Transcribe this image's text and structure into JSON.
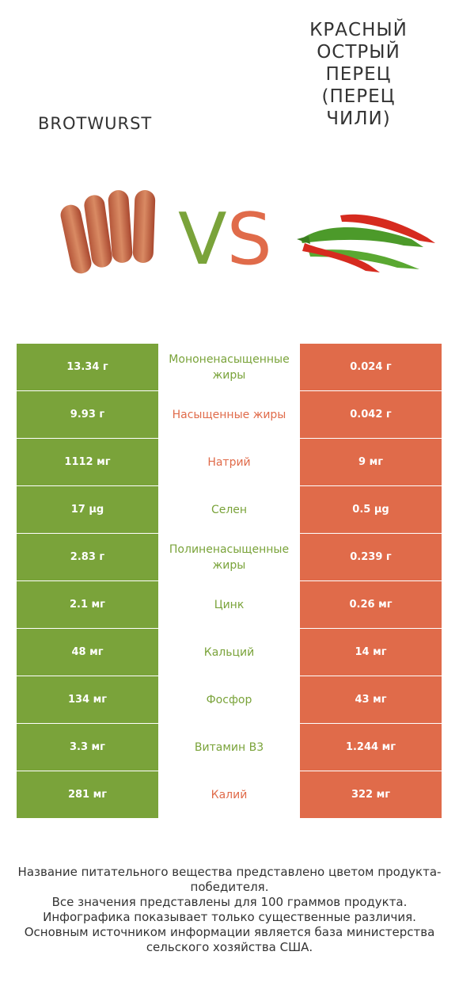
{
  "header": {
    "left_title": "BROTWURST",
    "right_title": "КРАСНЫЙ ОСТРЫЙ ПЕРЕЦ (ПЕРЕЦ ЧИЛИ)",
    "vs_v": "V",
    "vs_s": "S"
  },
  "colors": {
    "left": "#7aa33a",
    "right": "#e06b4a"
  },
  "rows": [
    {
      "left": "13.34 г",
      "label": "Мононенасыщенные жиры",
      "right": "0.024 г",
      "winner": "left"
    },
    {
      "left": "9.93 г",
      "label": "Насыщенные жиры",
      "right": "0.042 г",
      "winner": "right"
    },
    {
      "left": "1112 мг",
      "label": "Натрий",
      "right": "9 мг",
      "winner": "right"
    },
    {
      "left": "17 µg",
      "label": "Селен",
      "right": "0.5 µg",
      "winner": "left"
    },
    {
      "left": "2.83 г",
      "label": "Полиненасыщенные жиры",
      "right": "0.239 г",
      "winner": "left"
    },
    {
      "left": "2.1 мг",
      "label": "Цинк",
      "right": "0.26 мг",
      "winner": "left"
    },
    {
      "left": "48 мг",
      "label": "Кальций",
      "right": "14 мг",
      "winner": "left"
    },
    {
      "left": "134 мг",
      "label": "Фосфор",
      "right": "43 мг",
      "winner": "left"
    },
    {
      "left": "3.3 мг",
      "label": "Витамин B3",
      "right": "1.244 мг",
      "winner": "left"
    },
    {
      "left": "281 мг",
      "label": "Калий",
      "right": "322 мг",
      "winner": "right"
    }
  ],
  "footnote": {
    "line1": "Название питательного вещества представлено цветом продукта-победителя.",
    "line2": "Все значения представлены для 100 граммов продукта.",
    "line3": "Инфографика показывает только существенные различия.",
    "line4": "Основным источником информации является база министерства сельского хозяйства США."
  }
}
